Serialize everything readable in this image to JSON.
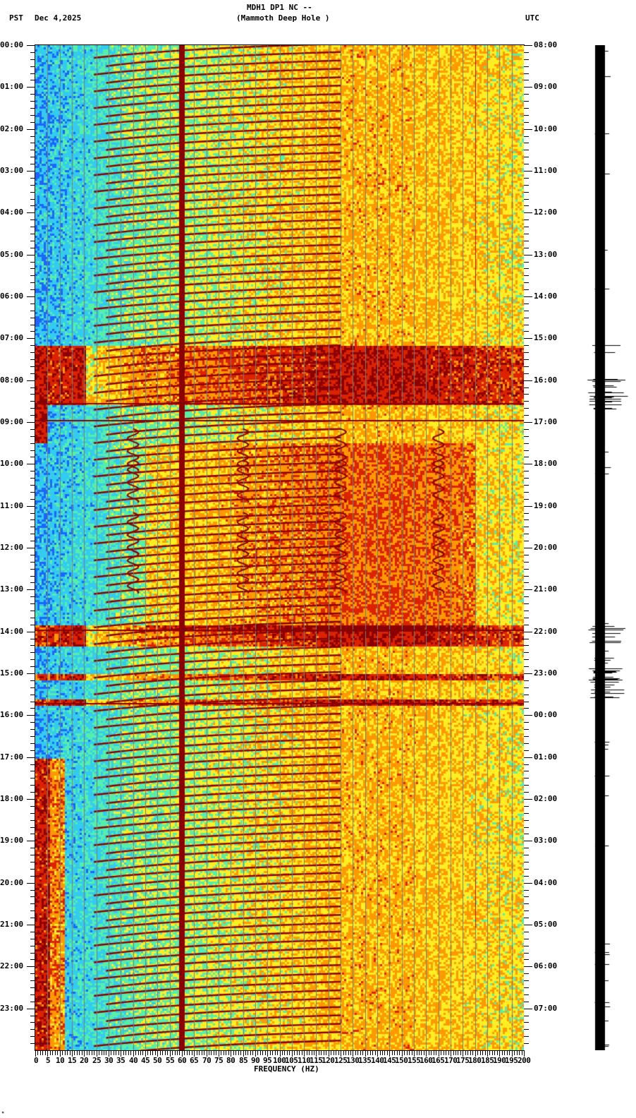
{
  "header": {
    "left_timezone": "PST",
    "date": "Dec 4,2025",
    "station_line": "MDH1 DP1 NC --",
    "station_name": "(Mammoth Deep Hole )",
    "right_timezone": "UTC"
  },
  "footer": {
    "corner_mark": "ᴹ"
  },
  "chart_data": {
    "type": "heatmap",
    "title": "MDH1 DP1 NC -- (Mammoth Deep Hole )",
    "subtitle": "Dec 4,2025",
    "xlabel": "FREQUENCY (HZ)",
    "ylabel_left": "PST",
    "ylabel_right": "UTC",
    "xlim": [
      0,
      200
    ],
    "x_ticks": [
      0,
      5,
      10,
      15,
      20,
      25,
      30,
      35,
      40,
      45,
      50,
      55,
      60,
      65,
      70,
      75,
      80,
      85,
      90,
      95,
      100,
      105,
      110,
      115,
      120,
      125,
      130,
      135,
      140,
      145,
      150,
      155,
      160,
      165,
      170,
      175,
      180,
      185,
      190,
      195,
      200
    ],
    "y_ticks_left_pst": [
      "00:00",
      "01:00",
      "02:00",
      "03:00",
      "04:00",
      "05:00",
      "06:00",
      "07:00",
      "08:00",
      "09:00",
      "10:00",
      "11:00",
      "12:00",
      "13:00",
      "14:00",
      "15:00",
      "16:00",
      "17:00",
      "18:00",
      "19:00",
      "20:00",
      "21:00",
      "22:00",
      "23:00"
    ],
    "y_ticks_right_utc": [
      "08:00",
      "09:00",
      "10:00",
      "11:00",
      "12:00",
      "13:00",
      "14:00",
      "15:00",
      "16:00",
      "17:00",
      "18:00",
      "19:00",
      "20:00",
      "21:00",
      "22:00",
      "23:00",
      "00:00",
      "01:00",
      "02:00",
      "03:00",
      "04:00",
      "05:00",
      "06:00",
      "07:00"
    ],
    "vertical_gridlines_every_hz": 5,
    "colormap": [
      "#1e64ff",
      "#33ccee",
      "#55eeaa",
      "#ffee22",
      "#ff9900",
      "#dd2200",
      "#8b0000"
    ],
    "features": {
      "persistent_line_hz": 60,
      "secondary_line_hz": 180,
      "sweeping_tonal_lines": "repeating upward-sweeping harmonic lines ~25-120 Hz, about every 12 minutes",
      "broadband_noise_periods_pst": [
        [
          "07:10",
          "08:35"
        ],
        [
          "13:50",
          "14:20"
        ],
        [
          "15:00",
          "15:10"
        ],
        [
          "15:35",
          "15:45"
        ]
      ],
      "low_freq_high_energy_pst": [
        [
          "17:00",
          "24:00"
        ]
      ],
      "wiggle_events_pst": [
        "09:35",
        "10:20",
        "11:35",
        "12:30"
      ],
      "wiggle_event_freqs_hz": [
        40,
        85,
        125,
        165
      ]
    },
    "waveform_trace": {
      "position": "right",
      "large_amplitude_bursts_utc": [
        "15:10",
        "15:55-16:35",
        "21:50-22:15",
        "22:35-23:35"
      ]
    }
  }
}
